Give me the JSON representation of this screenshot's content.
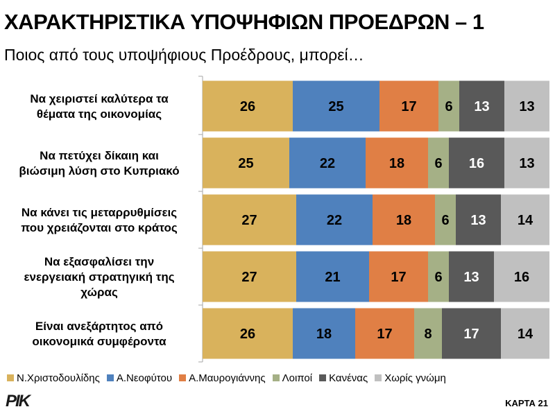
{
  "header": {
    "title": "ΧΑΡΑΚΤΗΡΙΣΤΙΚΑ ΥΠΟΨΗΦΙΩΝ ΠΡΟΕΔΡΩΝ – 1",
    "subtitle": "Ποιος από τους υποψήφιους Προέδρους, μπορεί…"
  },
  "footer": {
    "logo": "ΡΙΚ",
    "card_label": "ΚΑΡΤΑ 21"
  },
  "chart_data": {
    "type": "bar",
    "orientation": "horizontal",
    "stacked": true,
    "percent_stacked": true,
    "title": "ΧΑΡΑΚΤΗΡΙΣΤΙΚΑ ΥΠΟΨΗΦΙΩΝ ΠΡΟΕΔΡΩΝ – 1",
    "subtitle": "Ποιος από τους υποψήφιους Προέδρους, μπορεί…",
    "legend_position": "bottom",
    "categories": [
      [
        "Να χειριστεί καλύτερα τα",
        "θέματα της οικονομίας"
      ],
      [
        "Να πετύχει δίκαιη και",
        "βιώσιμη λύση στο Κυπριακό"
      ],
      [
        "Να κάνει τις μεταρρυθμίσεις",
        "που χρειάζονται στο κράτος"
      ],
      [
        "Να εξασφαλίσει την",
        "ενεργειακή στρατηγική της",
        "χώρας"
      ],
      [
        "Είναι ανεξάρτητος από",
        "οικονομικά συμφέροντα"
      ]
    ],
    "series": [
      {
        "name": "Ν.Χριστοδουλίδης",
        "color": "#D9B25C",
        "label_color": "#000000",
        "values": [
          26,
          25,
          27,
          27,
          26
        ]
      },
      {
        "name": "Α.Νεοφύτου",
        "color": "#4F81BD",
        "label_color": "#000000",
        "values": [
          25,
          22,
          22,
          21,
          18
        ]
      },
      {
        "name": "Α.Μαυρογιάννης",
        "color": "#E07F45",
        "label_color": "#000000",
        "values": [
          17,
          18,
          18,
          17,
          17
        ]
      },
      {
        "name": "Λοιποί",
        "color": "#A5B086",
        "label_color": "#000000",
        "values": [
          6,
          6,
          6,
          6,
          8
        ]
      },
      {
        "name": "Κανένας",
        "color": "#595959",
        "label_color": "#ffffff",
        "values": [
          13,
          16,
          13,
          13,
          17
        ]
      },
      {
        "name": "Χωρίς γνώμη",
        "color": "#C0C0C0",
        "label_color": "#000000",
        "values": [
          13,
          13,
          14,
          16,
          14
        ]
      }
    ]
  }
}
